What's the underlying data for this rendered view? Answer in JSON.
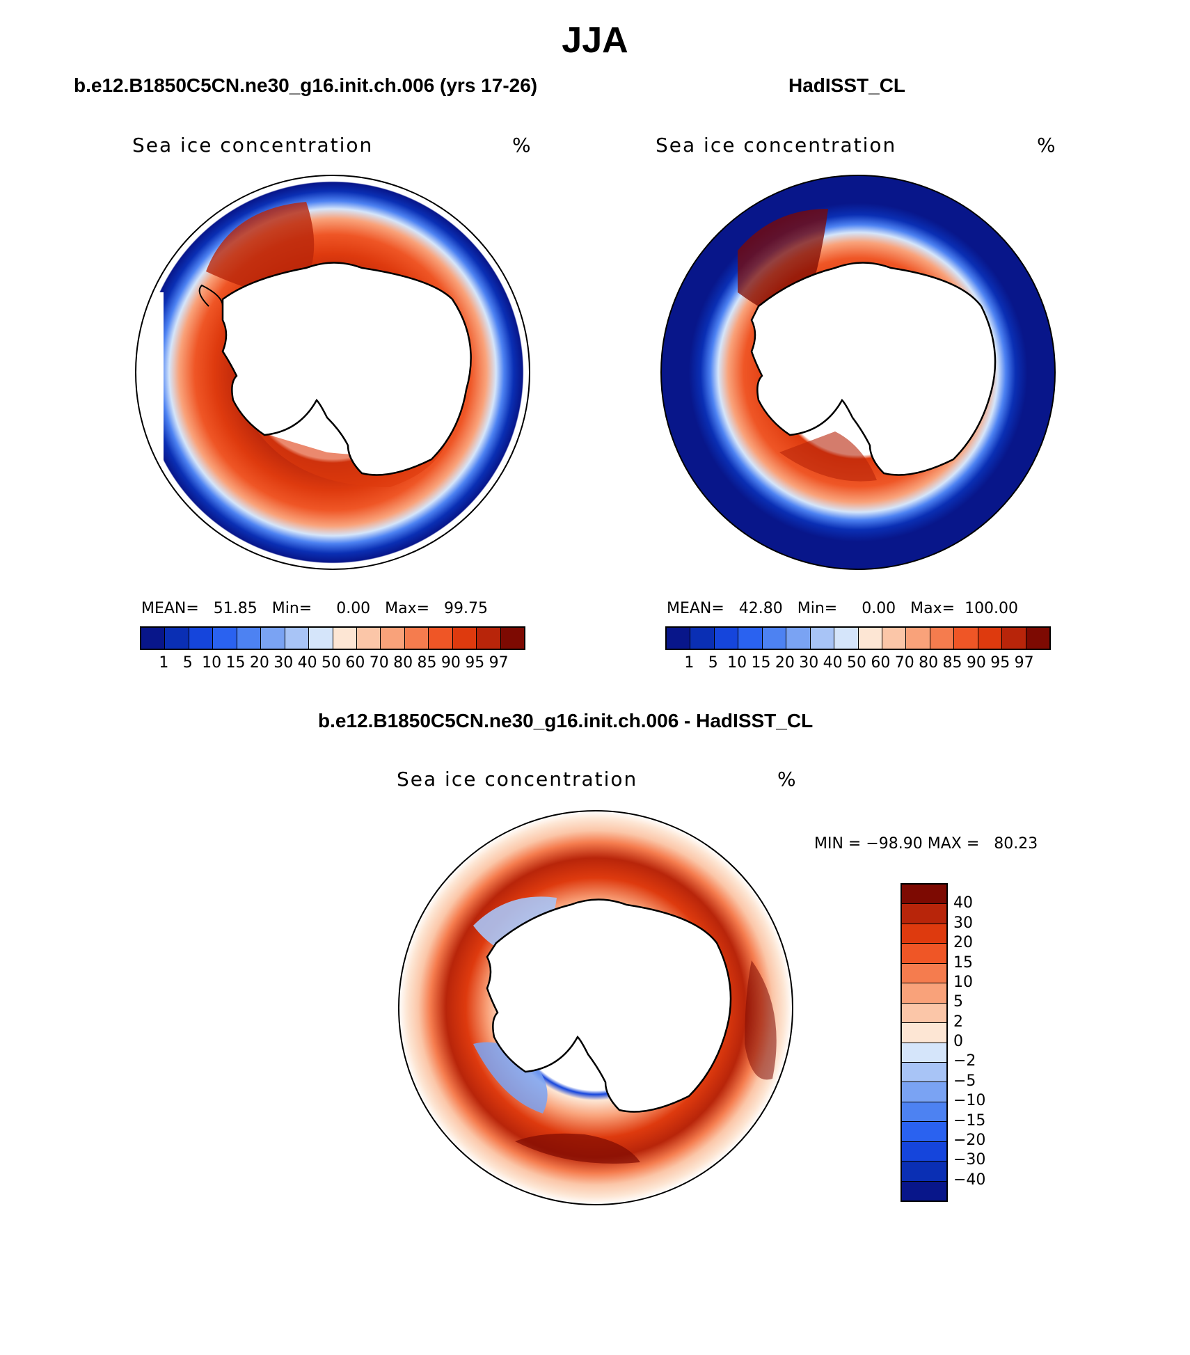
{
  "title": "JJA",
  "panels": [
    {
      "title": "b.e12.B1850C5CN.ne30_g16.init.ch.006 (yrs 17-26)",
      "variable": "Sea ice concentration",
      "units": "%",
      "stats": "MEAN=   51.85   Min=     0.00   Max=   99.75"
    },
    {
      "title": "HadISST_CL",
      "variable": "Sea ice concentration",
      "units": "%",
      "stats": "MEAN=   42.80   Min=     0.00   Max=  100.00"
    }
  ],
  "difference": {
    "title": "b.e12.B1850C5CN.ne30_g16.init.ch.006 - HadISST_CL",
    "variable": "Sea ice concentration",
    "units": "%",
    "stats": "MIN = −98.90 MAX =   80.23"
  },
  "colorbar_top": {
    "labels": [
      "1",
      "5",
      "10",
      "15",
      "20",
      "30",
      "40",
      "50",
      "60",
      "70",
      "80",
      "85",
      "90",
      "95",
      "97"
    ],
    "colors": [
      "#08168a",
      "#0a2fb4",
      "#1545dc",
      "#2a62f0",
      "#4d82f2",
      "#7aa3f3",
      "#a8c4f6",
      "#d5e5fa",
      "#fde6d4",
      "#fbc6a8",
      "#f9a27a",
      "#f57c4e",
      "#ef5626",
      "#de3a0e",
      "#b8250a",
      "#7d0a02"
    ]
  },
  "colorbar_diff": {
    "labels": [
      "40",
      "30",
      "20",
      "15",
      "10",
      "5",
      "2",
      "0",
      "−2",
      "−5",
      "−10",
      "−15",
      "−20",
      "−30",
      "−40"
    ],
    "colors": [
      "#7d0a02",
      "#b8250a",
      "#de3a0e",
      "#ef5626",
      "#f57c4e",
      "#f9a27a",
      "#fbc6a8",
      "#fde6d4",
      "#d5e5fa",
      "#a8c4f6",
      "#7aa3f3",
      "#4d82f2",
      "#2a62f0",
      "#1545dc",
      "#0a2fb4",
      "#08168a"
    ]
  }
}
